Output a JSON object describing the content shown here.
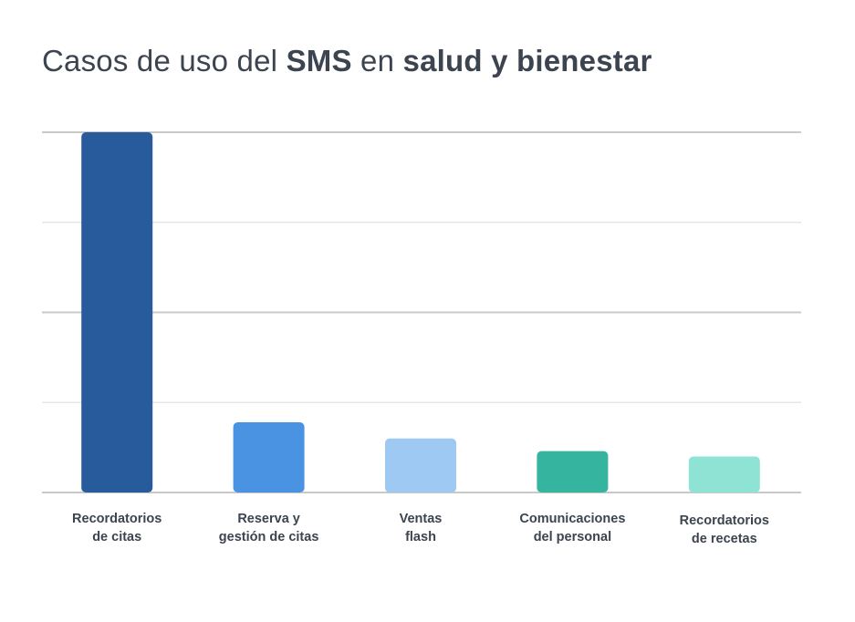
{
  "title": {
    "parts": [
      {
        "text": "Casos de uso del ",
        "bold": false
      },
      {
        "text": "SMS",
        "bold": true
      },
      {
        "text": " en ",
        "bold": false
      },
      {
        "text": "salud y bienestar",
        "bold": true
      }
    ]
  },
  "chart_data": {
    "type": "bar",
    "title": "Casos de uso del SMS en salud y bienestar",
    "xlabel": "",
    "ylabel": "",
    "ylim": [
      0,
      100
    ],
    "y_ticks": [
      0,
      25,
      50,
      75,
      100
    ],
    "tick_labels_visible": false,
    "grid": true,
    "legend": "none",
    "categories": [
      [
        "Recordatorios",
        "de citas"
      ],
      [
        "Reserva y",
        "gestión de citas"
      ],
      [
        "Ventas",
        "flash"
      ],
      [
        "Comunicaciones",
        "del personal"
      ],
      [
        "Recordatorios",
        "de recetas"
      ]
    ],
    "values": [
      100,
      19.5,
      15,
      11.5,
      10
    ],
    "colors": [
      "#285b9c",
      "#4a93e2",
      "#9dc9f2",
      "#35b59f",
      "#8ee3d4"
    ]
  }
}
